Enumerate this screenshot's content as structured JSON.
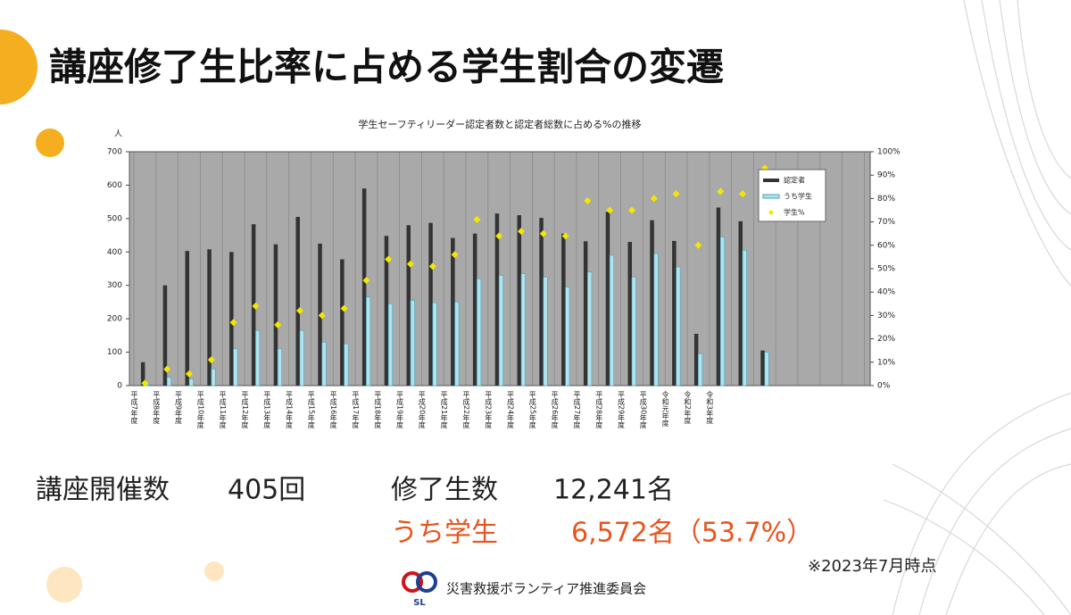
{
  "slide": {
    "title": "講座修了生比率に占める学生割合の変遷",
    "stats": {
      "sessions_label": "講座開催数",
      "sessions_value": "405回",
      "graduates_label": "修了生数",
      "graduates_value": "12,241名",
      "students_label": "うち学生",
      "students_value": "6,572名（53.7%）",
      "note": "※2023年7月時点"
    },
    "footer": {
      "logo": "SL",
      "org": "災害救援ボランティア推進委員会"
    }
  },
  "chart_data": {
    "type": "bar",
    "title": "学生セーフティリーダー認定者数と認定者総数に占める%の推移",
    "y_label": "人",
    "categories": [
      "平成7年度",
      "平成8年度",
      "平成9年度",
      "平成10年度",
      "平成11年度",
      "平成12年度",
      "平成13年度",
      "平成14年度",
      "平成15年度",
      "平成16年度",
      "平成17年度",
      "平成18年度",
      "平成19年度",
      "平成20年度",
      "平成21年度",
      "平成22年度",
      "平成23年度",
      "平成24年度",
      "平成25年度",
      "平成26年度",
      "平成27年度",
      "平成28年度",
      "平成29年度",
      "平成30年度",
      "令和元年度",
      "令和2年度",
      "令和3年度",
      null,
      null
    ],
    "series": [
      {
        "name": "認定者",
        "color": "#333333",
        "values": [
          70,
          300,
          403,
          408,
          400,
          483,
          423,
          505,
          425,
          378,
          590,
          448,
          480,
          487,
          442,
          455,
          515,
          510,
          502,
          455,
          432,
          520,
          430,
          495,
          433,
          155,
          533,
          492,
          105
        ]
      },
      {
        "name": "うち学生",
        "color": "#aee3ef",
        "values": [
          5,
          25,
          20,
          50,
          110,
          165,
          110,
          165,
          130,
          125,
          265,
          245,
          255,
          248,
          250,
          320,
          330,
          335,
          325,
          295,
          340,
          390,
          325,
          395,
          355,
          95,
          445,
          405,
          100
        ]
      },
      {
        "name": "学生%",
        "color": "#f5e600",
        "type": "scatter",
        "axis": "y2",
        "values": [
          1,
          7,
          5,
          11,
          27,
          34,
          26,
          32,
          30,
          33,
          45,
          54,
          52,
          51,
          56,
          71,
          64,
          66,
          65,
          64,
          79,
          75,
          75,
          80,
          82,
          60,
          83,
          82,
          93
        ]
      }
    ],
    "ylim": [
      0,
      700
    ],
    "yticks": [
      0,
      100,
      200,
      300,
      400,
      500,
      600,
      700
    ],
    "y2lim": [
      0,
      100
    ],
    "y2ticks": [
      {
        "value": 0,
        "label": "0%"
      },
      {
        "value": 10,
        "label": "10%"
      },
      {
        "value": 20,
        "label": "20%"
      },
      {
        "value": 30,
        "label": "30%"
      },
      {
        "value": 40,
        "label": "40%"
      },
      {
        "value": 50,
        "label": "50%"
      },
      {
        "value": 60,
        "label": "60%"
      },
      {
        "value": 70,
        "label": "70%"
      },
      {
        "value": 80,
        "label": "80%"
      },
      {
        "value": 90,
        "label": "90%"
      },
      {
        "value": 100,
        "label": "100%"
      }
    ],
    "legend": "upper right"
  }
}
